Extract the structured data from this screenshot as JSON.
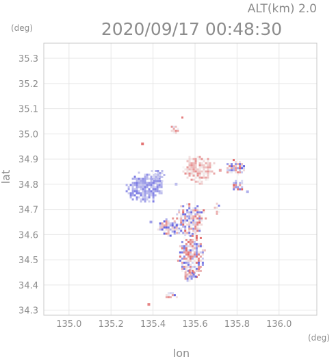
{
  "header": {
    "altitude_label": "ALT(km) 2.0",
    "timestamp": "2020/09/17 00:48:30"
  },
  "chart_data": {
    "type": "heatmap",
    "title": "2020/09/17 00:48:30",
    "subtitle": "ALT(km) 2.0",
    "xlabel": "lon",
    "ylabel": "lat",
    "x_unit": "(deg)",
    "y_unit": "(deg)",
    "xlim": [
      134.88,
      136.18
    ],
    "ylim": [
      34.28,
      35.36
    ],
    "x_ticks": [
      "135.0",
      "135.2",
      "135.4",
      "135.6",
      "135.8",
      "136.0"
    ],
    "y_ticks": [
      "34.3",
      "34.4",
      "34.5",
      "34.6",
      "34.7",
      "34.8",
      "34.9",
      "35.0",
      "35.1",
      "35.2",
      "35.3"
    ],
    "grid": true,
    "colors": {
      "approaching": "#6a6ae8",
      "receding": "#e86a6a",
      "pale_blue": "#c8c8f2",
      "pale_red": "#f2c8c8",
      "axis": "#c8c8c8"
    },
    "echo_regions": [
      {
        "lon": 135.355,
        "lat": 34.79,
        "rlon": 0.095,
        "rlat": 0.06,
        "polarity": -0.55,
        "noise": 0.3
      },
      {
        "lon": 135.42,
        "lat": 34.835,
        "rlon": 0.04,
        "rlat": 0.03,
        "polarity": -0.45,
        "noise": 0.3
      },
      {
        "lon": 135.61,
        "lat": 34.86,
        "rlon": 0.08,
        "rlat": 0.06,
        "polarity": 0.35,
        "noise": 0.4
      },
      {
        "lon": 135.79,
        "lat": 34.87,
        "rlon": 0.05,
        "rlat": 0.03,
        "polarity": 0.0,
        "noise": 1.0
      },
      {
        "lon": 135.8,
        "lat": 34.8,
        "rlon": 0.03,
        "rlat": 0.025,
        "polarity": 0.1,
        "noise": 1.0
      },
      {
        "lon": 135.57,
        "lat": 34.66,
        "rlon": 0.08,
        "rlat": 0.065,
        "polarity": 0.0,
        "noise": 1.0
      },
      {
        "lon": 135.47,
        "lat": 34.63,
        "rlon": 0.05,
        "rlat": 0.035,
        "polarity": -0.2,
        "noise": 1.0
      },
      {
        "lon": 135.58,
        "lat": 34.52,
        "rlon": 0.065,
        "rlat": 0.095,
        "polarity": 0.0,
        "noise": 1.0
      },
      {
        "lon": 135.57,
        "lat": 34.44,
        "rlon": 0.03,
        "rlat": 0.03,
        "polarity": -0.1,
        "noise": 1.0
      },
      {
        "lon": 135.7,
        "lat": 34.71,
        "rlon": 0.02,
        "rlat": 0.025,
        "polarity": 0.2,
        "noise": 1.0
      },
      {
        "lon": 135.495,
        "lat": 35.02,
        "rlon": 0.02,
        "rlat": 0.02,
        "polarity": 0.3,
        "noise": 0.6
      },
      {
        "lon": 135.535,
        "lat": 35.065,
        "rlon": 0.01,
        "rlat": 0.012,
        "polarity": 0.4,
        "noise": 0.6
      },
      {
        "lon": 135.48,
        "lat": 34.36,
        "rlon": 0.04,
        "rlat": 0.012,
        "polarity": -0.2,
        "noise": 1.0
      }
    ],
    "echo_specks": [
      {
        "lon": 135.35,
        "lat": 34.96,
        "polarity": 0.9
      },
      {
        "lon": 135.38,
        "lat": 34.323,
        "polarity": 0.8
      },
      {
        "lon": 135.39,
        "lat": 34.65,
        "polarity": -0.6
      },
      {
        "lon": 135.51,
        "lat": 34.8,
        "polarity": -0.4
      },
      {
        "lon": 135.72,
        "lat": 34.855,
        "polarity": 0.6
      },
      {
        "lon": 135.85,
        "lat": 34.77,
        "polarity": -0.5
      },
      {
        "lon": 135.62,
        "lat": 34.47,
        "polarity": 0.7
      }
    ]
  }
}
